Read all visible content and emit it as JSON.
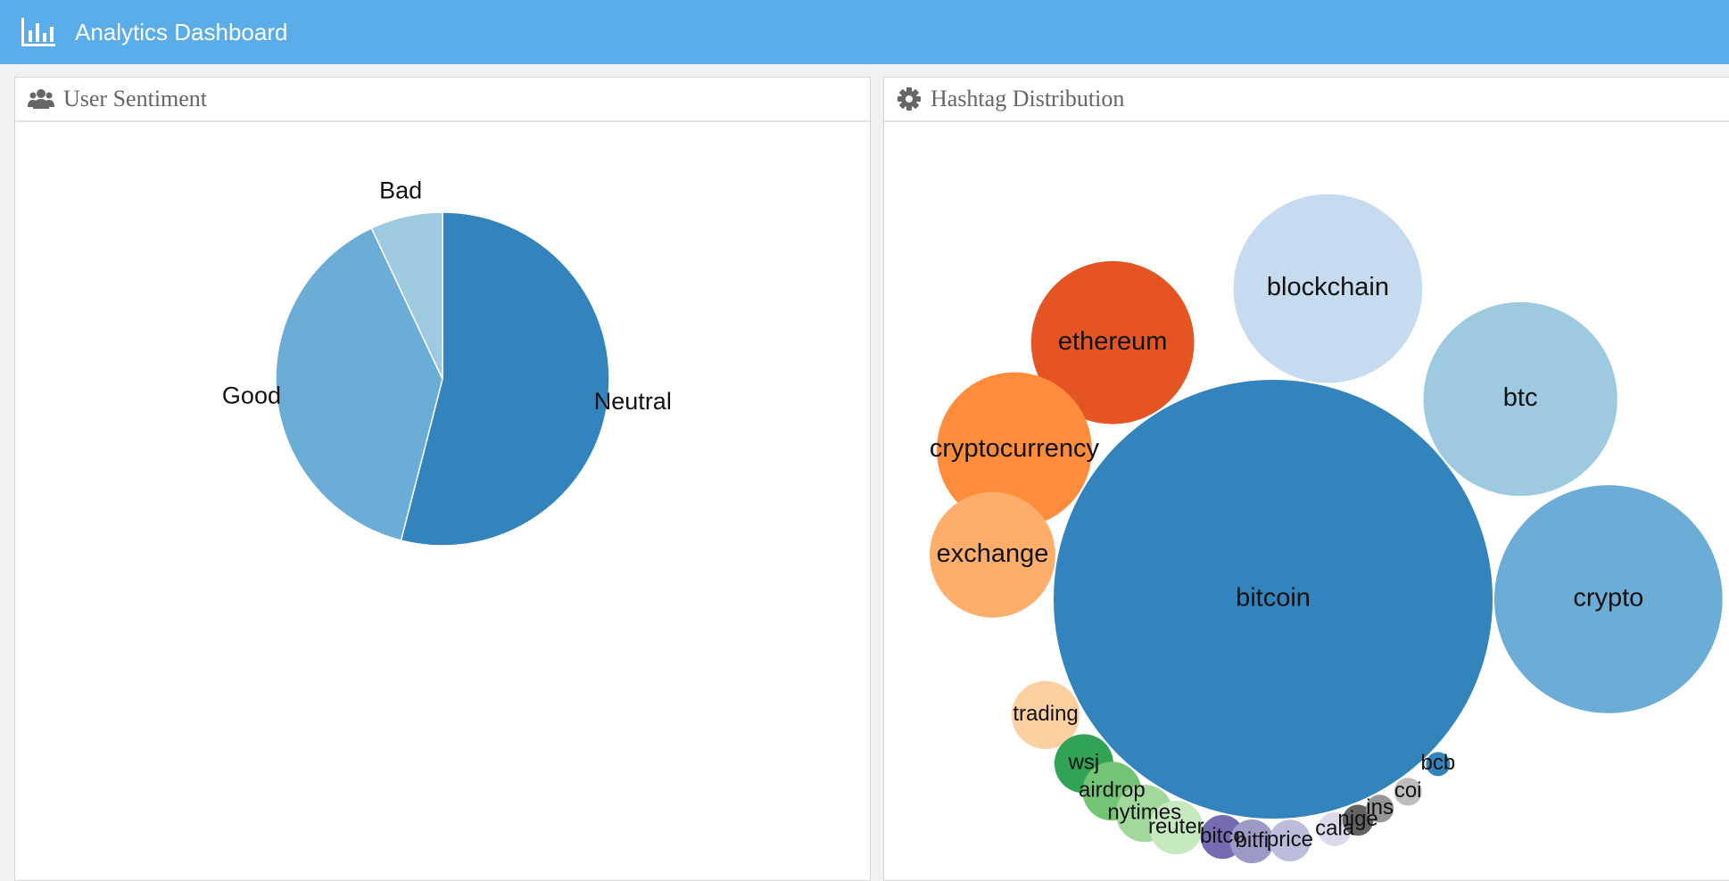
{
  "header": {
    "title": "Analytics Dashboard",
    "icon": "bar-chart-icon",
    "background": "#5aade9"
  },
  "panels": {
    "sentiment": {
      "title": "User Sentiment",
      "icon": "users-icon"
    },
    "hashtags": {
      "title": "Hashtag Distribution",
      "icon": "gear-icon"
    }
  },
  "chart_data": [
    {
      "type": "pie",
      "labels": [
        "Neutral",
        "Good",
        "Bad"
      ],
      "values": [
        54,
        39,
        7
      ],
      "colors": [
        "#3383bd",
        "#6badd6",
        "#9ecae1"
      ]
    },
    {
      "type": "bubble",
      "labels": [
        "bitcoin",
        "crypto",
        "btc",
        "blockchain",
        "ethereum",
        "cryptocurrency",
        "exchange",
        "trading",
        "wsj",
        "airdrop",
        "nytimes",
        "reuter",
        "bitco",
        "bitfi",
        "price",
        "cala",
        "nige",
        "ins",
        "coi",
        "bcb"
      ],
      "values": [
        1000,
        270,
        195,
        185,
        138,
        125,
        82,
        24,
        18,
        18,
        17,
        15,
        10,
        10,
        9,
        6,
        5,
        4,
        4,
        3
      ],
      "colors": [
        "#3383bd",
        "#6badd6",
        "#9ecae1",
        "#c6dbef",
        "#e55523",
        "#fd8d3c",
        "#fdae6b",
        "#fdd0a2",
        "#31a354",
        "#74c476",
        "#a1d99b",
        "#c7e9c0",
        "#756bb1",
        "#9e9ac8",
        "#bcbddc",
        "#dadaeb",
        "#636363",
        "#969696",
        "#bdbdbd",
        "#3383bd"
      ]
    }
  ]
}
